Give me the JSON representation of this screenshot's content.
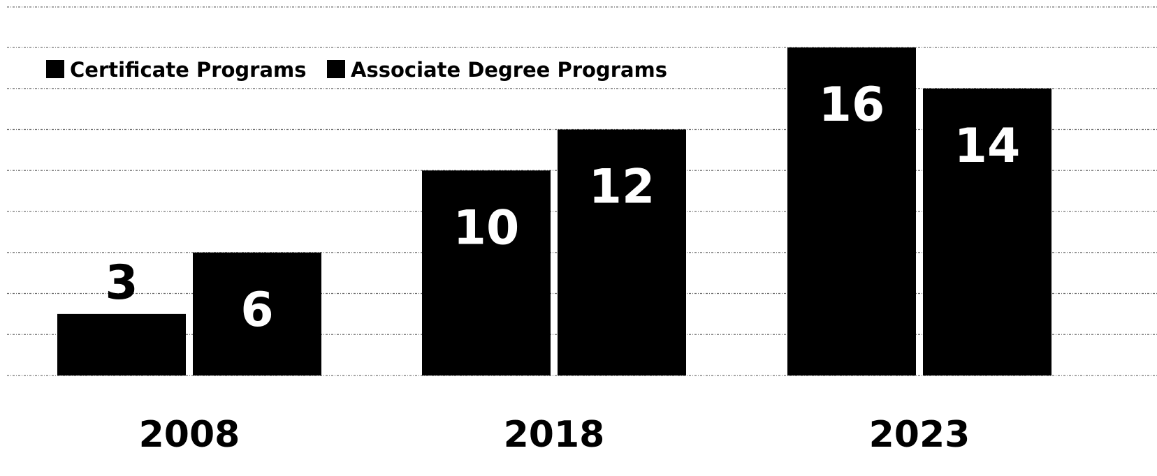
{
  "chart_data": {
    "type": "bar",
    "title": "",
    "xlabel": "",
    "ylabel": "",
    "categories": [
      "2008",
      "2018",
      "2023"
    ],
    "series": [
      {
        "name": "Certificate Programs",
        "values": [
          3,
          10,
          16
        ],
        "color": "#000000"
      },
      {
        "name": "Associate Degree Programs",
        "values": [
          6,
          12,
          14
        ],
        "color": "#000000"
      }
    ],
    "ylim": [
      0,
      16
    ],
    "grid": true,
    "legend": "top-left",
    "data_labels": true
  }
}
